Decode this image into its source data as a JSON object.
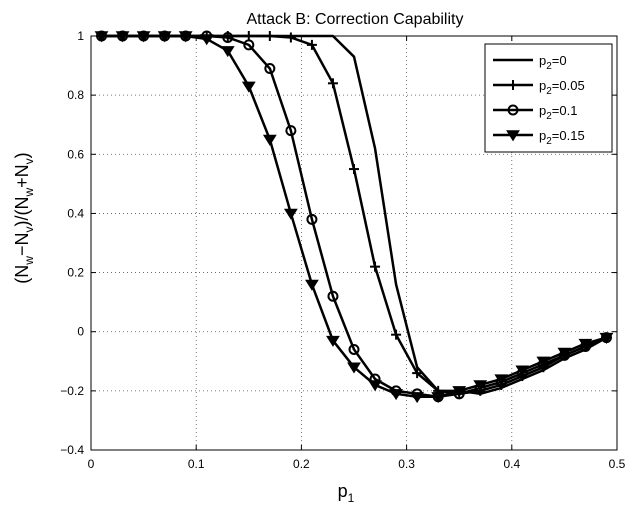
{
  "chart_data": {
    "type": "line",
    "title": "Attack B: Correction Capability",
    "xlabel": "p",
    "xlabel_sub": "1",
    "ylabel_parts": [
      {
        "t": "(N",
        "sub": false
      },
      {
        "t": "w",
        "sub": true
      },
      {
        "t": "−N",
        "sub": false
      },
      {
        "t": "v",
        "sub": true
      },
      {
        "t": ")/(N",
        "sub": false
      },
      {
        "t": "w",
        "sub": true
      },
      {
        "t": "+N",
        "sub": false
      },
      {
        "t": "v",
        "sub": true
      },
      {
        "t": ")",
        "sub": false
      }
    ],
    "xlim": [
      0,
      0.5
    ],
    "ylim": [
      -0.4,
      1
    ],
    "xticks": [
      0,
      0.1,
      0.2,
      0.3,
      0.4,
      0.5
    ],
    "xtick_labels": [
      "0",
      "0.1",
      "0.2",
      "0.3",
      "0.4",
      "0.5"
    ],
    "yticks": [
      -0.4,
      -0.2,
      0,
      0.2,
      0.4,
      0.6,
      0.8,
      1
    ],
    "ytick_labels": [
      "−0.4",
      "−0.2",
      "0",
      "0.2",
      "0.4",
      "0.6",
      "0.8",
      "1"
    ],
    "grid": true,
    "legend_position": "top-right",
    "x": [
      0.01,
      0.03,
      0.05,
      0.07,
      0.09,
      0.11,
      0.13,
      0.15,
      0.17,
      0.19,
      0.21,
      0.23,
      0.25,
      0.27,
      0.29,
      0.31,
      0.33,
      0.35,
      0.37,
      0.39,
      0.41,
      0.43,
      0.45,
      0.47,
      0.49
    ],
    "series": [
      {
        "name": "p",
        "name_sub": "2",
        "name_suffix": "=0",
        "marker": "none",
        "values": [
          1,
          1,
          1,
          1,
          1,
          1,
          1,
          1,
          1,
          1,
          1,
          1,
          0.93,
          0.62,
          0.16,
          -0.12,
          -0.2,
          -0.2,
          -0.21,
          -0.19,
          -0.16,
          -0.13,
          -0.09,
          -0.06,
          -0.02
        ]
      },
      {
        "name": "p",
        "name_sub": "2",
        "name_suffix": "=0.05",
        "marker": "plus",
        "values": [
          1,
          1,
          1,
          1,
          1,
          1,
          1,
          1,
          1,
          0.995,
          0.97,
          0.84,
          0.55,
          0.22,
          -0.01,
          -0.14,
          -0.2,
          -0.21,
          -0.2,
          -0.18,
          -0.15,
          -0.12,
          -0.08,
          -0.05,
          -0.02
        ]
      },
      {
        "name": "p",
        "name_sub": "2",
        "name_suffix": "=0.1",
        "marker": "circle",
        "values": [
          1,
          1,
          1,
          1,
          1,
          1,
          0.995,
          0.97,
          0.89,
          0.68,
          0.38,
          0.12,
          -0.06,
          -0.16,
          -0.2,
          -0.21,
          -0.22,
          -0.21,
          -0.19,
          -0.17,
          -0.14,
          -0.11,
          -0.08,
          -0.05,
          -0.02
        ]
      },
      {
        "name": "p",
        "name_sub": "2",
        "name_suffix": "=0.15",
        "marker": "triangle",
        "values": [
          1,
          1,
          1,
          1,
          1,
          0.99,
          0.95,
          0.83,
          0.65,
          0.4,
          0.16,
          -0.03,
          -0.12,
          -0.18,
          -0.21,
          -0.22,
          -0.22,
          -0.2,
          -0.18,
          -0.16,
          -0.13,
          -0.1,
          -0.07,
          -0.04,
          -0.02
        ]
      }
    ]
  }
}
